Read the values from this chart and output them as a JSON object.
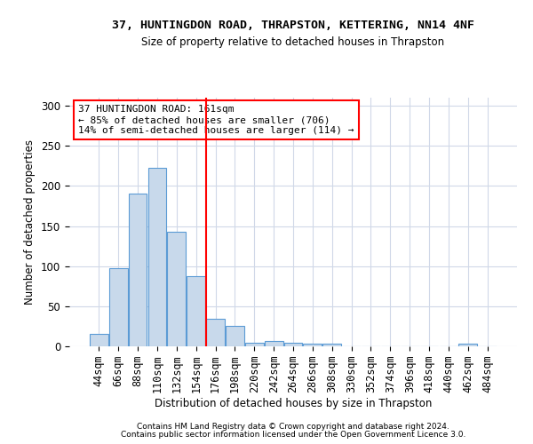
{
  "title1": "37, HUNTINGDON ROAD, THRAPSTON, KETTERING, NN14 4NF",
  "title2": "Size of property relative to detached houses in Thrapston",
  "xlabel": "Distribution of detached houses by size in Thrapston",
  "ylabel": "Number of detached properties",
  "bar_labels": [
    "44sqm",
    "66sqm",
    "88sqm",
    "110sqm",
    "132sqm",
    "154sqm",
    "176sqm",
    "198sqm",
    "220sqm",
    "242sqm",
    "264sqm",
    "286sqm",
    "308sqm",
    "330sqm",
    "352sqm",
    "374sqm",
    "396sqm",
    "418sqm",
    "440sqm",
    "462sqm",
    "484sqm"
  ],
  "bar_values": [
    15,
    97,
    190,
    222,
    143,
    88,
    34,
    25,
    4,
    7,
    4,
    3,
    3,
    0,
    0,
    0,
    0,
    0,
    0,
    3,
    0
  ],
  "bar_color": "#c8d9eb",
  "bar_edge_color": "#5b9bd5",
  "red_line_x": 5.5,
  "annotation_text": "37 HUNTINGDON ROAD: 161sqm\n← 85% of detached houses are smaller (706)\n14% of semi-detached houses are larger (114) →",
  "ylim": [
    0,
    310
  ],
  "yticks": [
    0,
    50,
    100,
    150,
    200,
    250,
    300
  ],
  "footer1": "Contains HM Land Registry data © Crown copyright and database right 2024.",
  "footer2": "Contains public sector information licensed under the Open Government Licence 3.0.",
  "background_color": "#ffffff",
  "grid_color": "#d0d8e8"
}
